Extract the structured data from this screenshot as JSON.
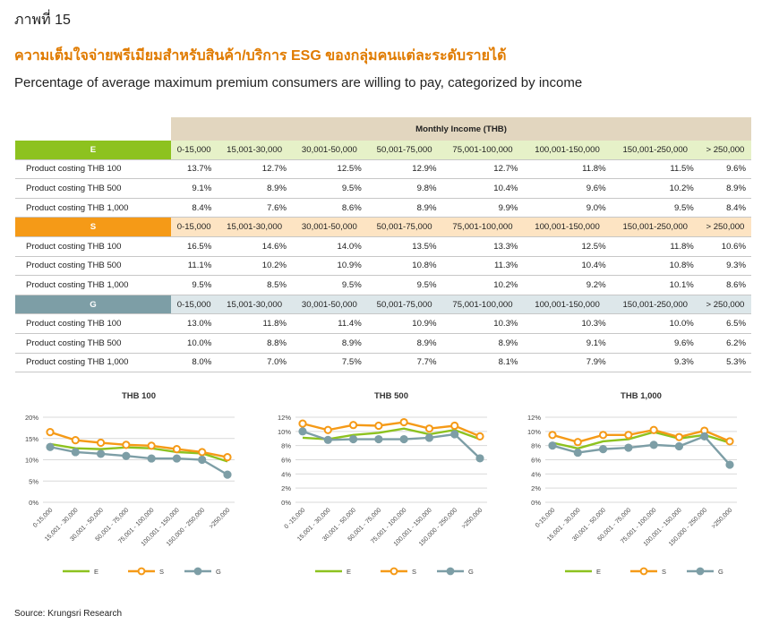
{
  "figure_label": "ภาพที่ 15",
  "title_th": "ความเต็มใจจ่ายพรีเมียมสำหรับสินค้า/บริการ ESG ของกลุ่มคนแต่ละระดับรายได้",
  "subtitle": "Percentage  of average maximum premium consumers are willing to pay, categorized by income",
  "table": {
    "header": "Monthly Income (THB)",
    "income_ranges": [
      "0-15,000",
      "15,001-30,000",
      "30,001-50,000",
      "50,001-75,000",
      "75,001-100,000",
      "100,001-150,000",
      "150,001-250,000",
      "> 250,000"
    ],
    "groups": [
      {
        "name": "E",
        "color": "#8dc21f",
        "light": "#e6f1c8",
        "rows": [
          {
            "label": "Product  costing THB 100",
            "values": [
              "13.7%",
              "12.7%",
              "12.5%",
              "12.9%",
              "12.7%",
              "11.8%",
              "11.5%",
              "9.6%"
            ]
          },
          {
            "label": "Product costing  THB 500",
            "values": [
              "9.1%",
              "8.9%",
              "9.5%",
              "9.8%",
              "10.4%",
              "9.6%",
              "10.2%",
              "8.9%"
            ]
          },
          {
            "label": "Product costing  THB 1,000",
            "values": [
              "8.4%",
              "7.6%",
              "8.6%",
              "8.9%",
              "9.9%",
              "9.0%",
              "9.5%",
              "8.4%"
            ]
          }
        ]
      },
      {
        "name": "S",
        "color": "#f59a17",
        "light": "#fde4c3",
        "rows": [
          {
            "label": "Product  costing THB 100",
            "values": [
              "16.5%",
              "14.6%",
              "14.0%",
              "13.5%",
              "13.3%",
              "12.5%",
              "11.8%",
              "10.6%"
            ]
          },
          {
            "label": "Product costing  THB 500",
            "values": [
              "11.1%",
              "10.2%",
              "10.9%",
              "10.8%",
              "11.3%",
              "10.4%",
              "10.8%",
              "9.3%"
            ]
          },
          {
            "label": "Product costing  THB 1,000",
            "values": [
              "9.5%",
              "8.5%",
              "9.5%",
              "9.5%",
              "10.2%",
              "9.2%",
              "10.1%",
              "8.6%"
            ]
          }
        ]
      },
      {
        "name": "G",
        "color": "#7d9ea6",
        "light": "#dde7ea",
        "rows": [
          {
            "label": "Product  costing THB 100",
            "values": [
              "13.0%",
              "11.8%",
              "11.4%",
              "10.9%",
              "10.3%",
              "10.3%",
              "10.0%",
              "6.5%"
            ]
          },
          {
            "label": "Product costing  THB 500",
            "values": [
              "10.0%",
              "8.8%",
              "8.9%",
              "8.9%",
              "8.9%",
              "9.1%",
              "9.6%",
              "6.2%"
            ]
          },
          {
            "label": "Product costing  THB 1,000",
            "values": [
              "8.0%",
              "7.0%",
              "7.5%",
              "7.7%",
              "8.1%",
              "7.9%",
              "9.3%",
              "5.3%"
            ]
          }
        ]
      }
    ]
  },
  "colors": {
    "E": "#8dc21f",
    "S": "#f59a17",
    "G": "#7d9ea6",
    "grid": "#d9d9d9",
    "header": "#e2d6bf"
  },
  "chart_data": [
    {
      "type": "line",
      "title": "THB 100",
      "categories": [
        "0-15,000",
        "15,001 - 30,000",
        "30,001 - 50,000",
        "50,001 - 75,000",
        "75,001 - 100,000",
        "100,001 - 150,000",
        "150,000 - 250,000",
        ">250,000"
      ],
      "series": [
        {
          "name": "E",
          "values": [
            13.7,
            12.7,
            12.5,
            12.9,
            12.7,
            11.8,
            11.5,
            9.6
          ]
        },
        {
          "name": "S",
          "values": [
            16.5,
            14.6,
            14.0,
            13.5,
            13.3,
            12.5,
            11.8,
            10.6
          ]
        },
        {
          "name": "G",
          "values": [
            13.0,
            11.8,
            11.4,
            10.9,
            10.3,
            10.3,
            10.0,
            6.5
          ]
        }
      ],
      "ylim": [
        0,
        20
      ],
      "yticks": [
        "0%",
        "5%",
        "10%",
        "15%",
        "20%"
      ],
      "ytick_values": [
        0,
        5,
        10,
        15,
        20
      ],
      "legend": "bottom",
      "grid": true
    },
    {
      "type": "line",
      "title": "THB 500",
      "categories": [
        "0 -15,000",
        "15,001 - 30,000",
        "30,001 - 50,000",
        "50,001 - 75,000",
        "75,001 - 100,000",
        "100,001 - 150,000",
        "150,000 - 250,000",
        ">250,000"
      ],
      "series": [
        {
          "name": "E",
          "values": [
            9.1,
            8.9,
            9.5,
            9.8,
            10.4,
            9.6,
            10.2,
            8.9
          ]
        },
        {
          "name": "S",
          "values": [
            11.1,
            10.2,
            10.9,
            10.8,
            11.3,
            10.4,
            10.8,
            9.3
          ]
        },
        {
          "name": "G",
          "values": [
            10.0,
            8.8,
            8.9,
            8.9,
            8.9,
            9.1,
            9.6,
            6.2
          ]
        }
      ],
      "ylim": [
        0,
        12
      ],
      "yticks": [
        "0%",
        "2%",
        "4%",
        "6%",
        "8%",
        "10%",
        "12%"
      ],
      "ytick_values": [
        0,
        2,
        4,
        6,
        8,
        10,
        12
      ],
      "legend": "bottom",
      "grid": true
    },
    {
      "type": "line",
      "title": "THB 1,000",
      "categories": [
        "0-15,000",
        "15,001 - 30,000",
        "30,001 - 50,000",
        "50,001 - 75,000",
        "75,001 - 100,000",
        "100,001 - 150,000",
        "150,000 - 250,000",
        ">250,000"
      ],
      "series": [
        {
          "name": "E",
          "values": [
            8.4,
            7.6,
            8.6,
            8.9,
            9.9,
            9.0,
            9.5,
            8.4
          ]
        },
        {
          "name": "S",
          "values": [
            9.5,
            8.5,
            9.5,
            9.5,
            10.2,
            9.2,
            10.1,
            8.6
          ]
        },
        {
          "name": "G",
          "values": [
            8.0,
            7.0,
            7.5,
            7.7,
            8.1,
            7.9,
            9.3,
            5.3
          ]
        }
      ],
      "ylim": [
        0,
        12
      ],
      "yticks": [
        "0%",
        "2%",
        "4%",
        "6%",
        "8%",
        "10%",
        "12%"
      ],
      "ytick_values": [
        0,
        2,
        4,
        6,
        8,
        10,
        12
      ],
      "legend": "bottom",
      "grid": true
    }
  ],
  "source": "Source: Krungsri Research"
}
